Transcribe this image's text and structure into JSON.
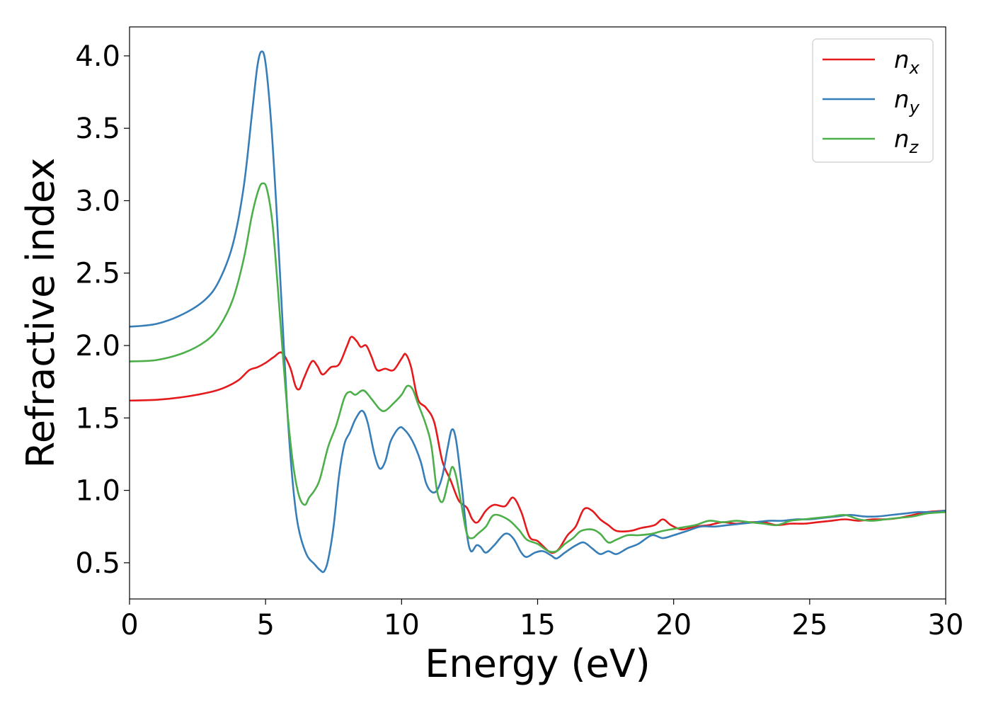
{
  "chart_data": {
    "type": "line",
    "title": "",
    "xlabel": "Energy (eV)",
    "ylabel": "Refractive index",
    "xlim": [
      0,
      30
    ],
    "ylim": [
      0.25,
      4.2
    ],
    "xticks": [
      0,
      5,
      10,
      15,
      20,
      25,
      30
    ],
    "xtick_labels": [
      "0",
      "5",
      "10",
      "15",
      "20",
      "25",
      "30"
    ],
    "yticks": [
      0.5,
      1.0,
      1.5,
      2.0,
      2.5,
      3.0,
      3.5,
      4.0
    ],
    "ytick_labels": [
      "0.5",
      "1.0",
      "1.5",
      "2.0",
      "2.5",
      "3.0",
      "3.5",
      "4.0"
    ],
    "grid": false,
    "legend_position": "top-right",
    "series": [
      {
        "name": "n_x",
        "label_base": "n",
        "label_sub": "x",
        "color": "#e41a1c",
        "points": [
          [
            0,
            1.62
          ],
          [
            1,
            1.625
          ],
          [
            2,
            1.645
          ],
          [
            3,
            1.68
          ],
          [
            3.5,
            1.71
          ],
          [
            4,
            1.76
          ],
          [
            4.4,
            1.83
          ],
          [
            4.7,
            1.85
          ],
          [
            5.0,
            1.88
          ],
          [
            5.3,
            1.92
          ],
          [
            5.6,
            1.95
          ],
          [
            5.9,
            1.85
          ],
          [
            6.1,
            1.72
          ],
          [
            6.25,
            1.7
          ],
          [
            6.4,
            1.77
          ],
          [
            6.7,
            1.89
          ],
          [
            6.9,
            1.86
          ],
          [
            7.1,
            1.8
          ],
          [
            7.4,
            1.85
          ],
          [
            7.7,
            1.87
          ],
          [
            8.0,
            2.0
          ],
          [
            8.15,
            2.06
          ],
          [
            8.35,
            2.03
          ],
          [
            8.5,
            1.99
          ],
          [
            8.7,
            2.0
          ],
          [
            8.9,
            1.92
          ],
          [
            9.1,
            1.83
          ],
          [
            9.4,
            1.84
          ],
          [
            9.7,
            1.83
          ],
          [
            10.0,
            1.91
          ],
          [
            10.15,
            1.94
          ],
          [
            10.35,
            1.85
          ],
          [
            10.6,
            1.63
          ],
          [
            10.9,
            1.57
          ],
          [
            11.2,
            1.47
          ],
          [
            11.5,
            1.2
          ],
          [
            11.8,
            1.07
          ],
          [
            12.1,
            0.93
          ],
          [
            12.4,
            0.88
          ],
          [
            12.6,
            0.8
          ],
          [
            12.8,
            0.78
          ],
          [
            13.1,
            0.86
          ],
          [
            13.4,
            0.9
          ],
          [
            13.8,
            0.89
          ],
          [
            14.1,
            0.95
          ],
          [
            14.4,
            0.85
          ],
          [
            14.7,
            0.68
          ],
          [
            15.0,
            0.65
          ],
          [
            15.4,
            0.58
          ],
          [
            15.6,
            0.57
          ],
          [
            15.8,
            0.6
          ],
          [
            16.1,
            0.69
          ],
          [
            16.4,
            0.75
          ],
          [
            16.7,
            0.87
          ],
          [
            17.0,
            0.86
          ],
          [
            17.3,
            0.8
          ],
          [
            17.6,
            0.76
          ],
          [
            17.9,
            0.72
          ],
          [
            18.4,
            0.72
          ],
          [
            18.8,
            0.74
          ],
          [
            19.3,
            0.76
          ],
          [
            19.6,
            0.8
          ],
          [
            19.9,
            0.76
          ],
          [
            20.3,
            0.73
          ],
          [
            20.8,
            0.75
          ],
          [
            21.3,
            0.76
          ],
          [
            21.8,
            0.78
          ],
          [
            22.3,
            0.77
          ],
          [
            22.8,
            0.78
          ],
          [
            23.3,
            0.78
          ],
          [
            23.8,
            0.76
          ],
          [
            24.3,
            0.77
          ],
          [
            24.8,
            0.77
          ],
          [
            25.3,
            0.78
          ],
          [
            25.8,
            0.79
          ],
          [
            26.3,
            0.8
          ],
          [
            26.8,
            0.79
          ],
          [
            27.3,
            0.8
          ],
          [
            27.8,
            0.8
          ],
          [
            28.3,
            0.81
          ],
          [
            28.8,
            0.83
          ],
          [
            29.3,
            0.85
          ],
          [
            30,
            0.86
          ]
        ]
      },
      {
        "name": "n_y",
        "label_base": "n",
        "label_sub": "y",
        "color": "#377eb8",
        "points": [
          [
            0,
            2.13
          ],
          [
            1,
            2.15
          ],
          [
            2,
            2.22
          ],
          [
            2.8,
            2.32
          ],
          [
            3.3,
            2.45
          ],
          [
            3.8,
            2.7
          ],
          [
            4.2,
            3.1
          ],
          [
            4.5,
            3.6
          ],
          [
            4.7,
            3.93
          ],
          [
            4.85,
            4.03
          ],
          [
            5.0,
            3.95
          ],
          [
            5.2,
            3.55
          ],
          [
            5.4,
            2.95
          ],
          [
            5.6,
            2.25
          ],
          [
            5.8,
            1.55
          ],
          [
            6.0,
            1.05
          ],
          [
            6.2,
            0.75
          ],
          [
            6.5,
            0.56
          ],
          [
            6.8,
            0.49
          ],
          [
            7.0,
            0.45
          ],
          [
            7.15,
            0.44
          ],
          [
            7.3,
            0.52
          ],
          [
            7.5,
            0.75
          ],
          [
            7.7,
            1.1
          ],
          [
            7.9,
            1.32
          ],
          [
            8.1,
            1.4
          ],
          [
            8.3,
            1.49
          ],
          [
            8.55,
            1.55
          ],
          [
            8.75,
            1.47
          ],
          [
            9.0,
            1.25
          ],
          [
            9.2,
            1.15
          ],
          [
            9.4,
            1.2
          ],
          [
            9.6,
            1.34
          ],
          [
            9.9,
            1.43
          ],
          [
            10.1,
            1.42
          ],
          [
            10.4,
            1.34
          ],
          [
            10.7,
            1.2
          ],
          [
            10.9,
            1.05
          ],
          [
            11.1,
            0.99
          ],
          [
            11.3,
            1.0
          ],
          [
            11.5,
            1.1
          ],
          [
            11.7,
            1.3
          ],
          [
            11.85,
            1.42
          ],
          [
            12.0,
            1.35
          ],
          [
            12.2,
            1.05
          ],
          [
            12.4,
            0.7
          ],
          [
            12.55,
            0.58
          ],
          [
            12.75,
            0.62
          ],
          [
            12.9,
            0.61
          ],
          [
            13.1,
            0.57
          ],
          [
            13.4,
            0.62
          ],
          [
            13.8,
            0.7
          ],
          [
            14.1,
            0.67
          ],
          [
            14.4,
            0.57
          ],
          [
            14.6,
            0.54
          ],
          [
            14.9,
            0.57
          ],
          [
            15.2,
            0.58
          ],
          [
            15.5,
            0.55
          ],
          [
            15.7,
            0.53
          ],
          [
            16.0,
            0.57
          ],
          [
            16.4,
            0.62
          ],
          [
            16.7,
            0.64
          ],
          [
            17.0,
            0.6
          ],
          [
            17.3,
            0.56
          ],
          [
            17.6,
            0.58
          ],
          [
            17.9,
            0.56
          ],
          [
            18.3,
            0.6
          ],
          [
            18.7,
            0.63
          ],
          [
            19.2,
            0.69
          ],
          [
            19.6,
            0.67
          ],
          [
            20.0,
            0.69
          ],
          [
            20.5,
            0.72
          ],
          [
            21.0,
            0.75
          ],
          [
            21.5,
            0.75
          ],
          [
            22.0,
            0.76
          ],
          [
            22.5,
            0.77
          ],
          [
            23.0,
            0.78
          ],
          [
            23.5,
            0.79
          ],
          [
            24.0,
            0.79
          ],
          [
            24.5,
            0.8
          ],
          [
            25.0,
            0.8
          ],
          [
            25.5,
            0.81
          ],
          [
            26.0,
            0.82
          ],
          [
            26.5,
            0.83
          ],
          [
            27.0,
            0.82
          ],
          [
            27.5,
            0.82
          ],
          [
            28.0,
            0.83
          ],
          [
            28.5,
            0.84
          ],
          [
            29.0,
            0.85
          ],
          [
            29.5,
            0.85
          ],
          [
            30,
            0.86
          ]
        ]
      },
      {
        "name": "n_z",
        "label_base": "n",
        "label_sub": "z",
        "color": "#4daf4a",
        "points": [
          [
            0,
            1.89
          ],
          [
            1,
            1.9
          ],
          [
            2,
            1.95
          ],
          [
            2.8,
            2.03
          ],
          [
            3.3,
            2.13
          ],
          [
            3.8,
            2.32
          ],
          [
            4.2,
            2.6
          ],
          [
            4.5,
            2.9
          ],
          [
            4.75,
            3.08
          ],
          [
            4.9,
            3.12
          ],
          [
            5.05,
            3.08
          ],
          [
            5.25,
            2.85
          ],
          [
            5.45,
            2.4
          ],
          [
            5.65,
            1.9
          ],
          [
            5.85,
            1.45
          ],
          [
            6.05,
            1.13
          ],
          [
            6.25,
            0.95
          ],
          [
            6.45,
            0.9
          ],
          [
            6.6,
            0.95
          ],
          [
            6.8,
            1.0
          ],
          [
            7.0,
            1.08
          ],
          [
            7.3,
            1.3
          ],
          [
            7.6,
            1.45
          ],
          [
            7.9,
            1.64
          ],
          [
            8.1,
            1.68
          ],
          [
            8.3,
            1.66
          ],
          [
            8.6,
            1.69
          ],
          [
            8.9,
            1.63
          ],
          [
            9.2,
            1.56
          ],
          [
            9.4,
            1.55
          ],
          [
            9.7,
            1.6
          ],
          [
            10.0,
            1.66
          ],
          [
            10.2,
            1.72
          ],
          [
            10.4,
            1.7
          ],
          [
            10.6,
            1.6
          ],
          [
            10.9,
            1.45
          ],
          [
            11.1,
            1.3
          ],
          [
            11.3,
            1.0
          ],
          [
            11.5,
            0.92
          ],
          [
            11.7,
            1.05
          ],
          [
            11.85,
            1.16
          ],
          [
            12.0,
            1.1
          ],
          [
            12.2,
            0.9
          ],
          [
            12.4,
            0.7
          ],
          [
            12.6,
            0.67
          ],
          [
            12.8,
            0.7
          ],
          [
            13.1,
            0.75
          ],
          [
            13.4,
            0.83
          ],
          [
            13.9,
            0.8
          ],
          [
            14.3,
            0.73
          ],
          [
            14.6,
            0.66
          ],
          [
            15.0,
            0.63
          ],
          [
            15.4,
            0.58
          ],
          [
            15.7,
            0.58
          ],
          [
            16.0,
            0.63
          ],
          [
            16.3,
            0.67
          ],
          [
            16.6,
            0.72
          ],
          [
            17.0,
            0.73
          ],
          [
            17.3,
            0.7
          ],
          [
            17.6,
            0.64
          ],
          [
            17.9,
            0.66
          ],
          [
            18.3,
            0.69
          ],
          [
            18.7,
            0.69
          ],
          [
            19.2,
            0.7
          ],
          [
            19.6,
            0.72
          ],
          [
            20.2,
            0.74
          ],
          [
            20.8,
            0.76
          ],
          [
            21.3,
            0.79
          ],
          [
            21.8,
            0.78
          ],
          [
            22.3,
            0.79
          ],
          [
            22.8,
            0.78
          ],
          [
            23.3,
            0.77
          ],
          [
            23.8,
            0.76
          ],
          [
            24.3,
            0.79
          ],
          [
            24.8,
            0.8
          ],
          [
            25.3,
            0.81
          ],
          [
            25.8,
            0.82
          ],
          [
            26.3,
            0.83
          ],
          [
            26.8,
            0.8
          ],
          [
            27.3,
            0.79
          ],
          [
            27.8,
            0.8
          ],
          [
            28.3,
            0.81
          ],
          [
            28.8,
            0.82
          ],
          [
            29.3,
            0.84
          ],
          [
            30,
            0.85
          ]
        ]
      }
    ]
  }
}
